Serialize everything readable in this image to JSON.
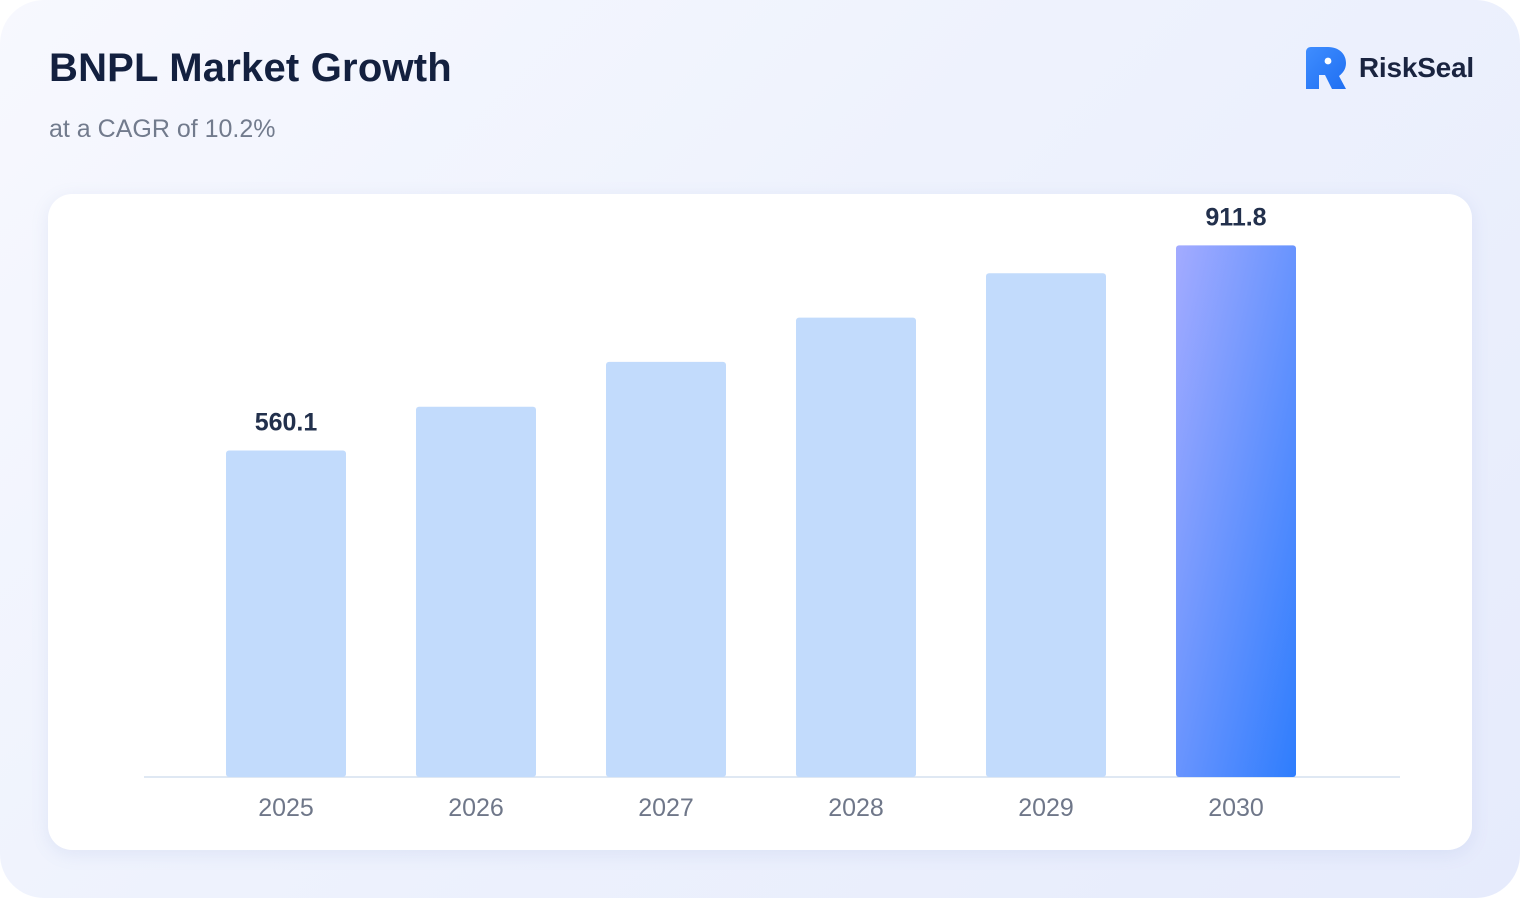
{
  "header": {
    "title": "BNPL Market Growth",
    "subtitle": "at a CAGR of 10.2%"
  },
  "brand": {
    "name": "RiskSeal",
    "icon": "riskseal-logo-icon",
    "color": "#2a7cfb"
  },
  "colors": {
    "bar": "#c2dbfc",
    "highlight_start": "#a3abff",
    "highlight_end": "#2e7dfd",
    "axis": "#dfe8f3"
  },
  "chart_data": {
    "type": "bar",
    "categories": [
      "2025",
      "2026",
      "2027",
      "2028",
      "2029",
      "2030"
    ],
    "values": [
      560.1,
      635,
      712,
      788,
      864,
      911.8
    ],
    "labeled": [
      true,
      false,
      false,
      false,
      false,
      true
    ],
    "highlight_index": 5,
    "ylim": [
      0,
      1000
    ],
    "grid": false,
    "legend": "none",
    "title": "BNPL Market Growth",
    "subtitle": "at a CAGR of 10.2%",
    "xlabel": "",
    "ylabel": ""
  }
}
